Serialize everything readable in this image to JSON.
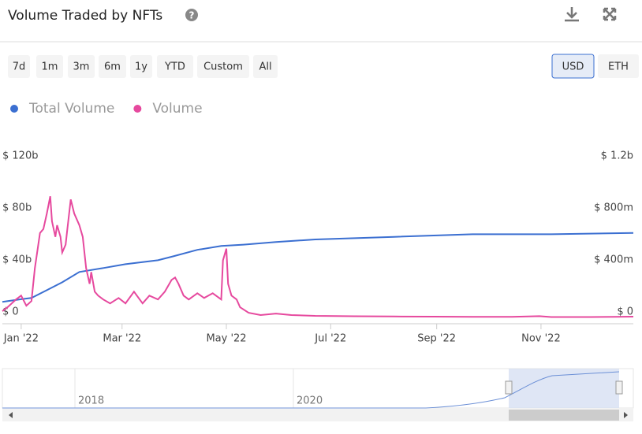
{
  "chart_data": {
    "type": "line",
    "title": "Volume Traded by NFTs",
    "range_buttons": [
      "7d",
      "1m",
      "3m",
      "6m",
      "1y",
      "YTD",
      "Custom",
      "All"
    ],
    "currency_buttons": [
      "USD",
      "ETH"
    ],
    "selected_currency": "USD",
    "xlim": [
      -11,
      358
    ],
    "xticks": [
      {
        "value": 0,
        "label": "Jan '22"
      },
      {
        "value": 59,
        "label": "Mar '22"
      },
      {
        "value": 120,
        "label": "May '22"
      },
      {
        "value": 181,
        "label": "Jul '22"
      },
      {
        "value": 243,
        "label": "Sep '22"
      },
      {
        "value": 304,
        "label": "Nov '22"
      }
    ],
    "ylim": [
      0,
      120
    ],
    "yticks": [
      {
        "value": 0,
        "label": "$ 0"
      },
      {
        "value": 40,
        "label": "$ 40b"
      },
      {
        "value": 80,
        "label": "$ 80b"
      },
      {
        "value": 120,
        "label": "$ 120b"
      }
    ],
    "y2lim": [
      0,
      1200
    ],
    "y2ticks": [
      {
        "value": 0,
        "label": "$ 0"
      },
      {
        "value": 400,
        "label": "$ 400m"
      },
      {
        "value": 800,
        "label": "$ 800m"
      },
      {
        "value": 1200,
        "label": "$ 1.2b"
      }
    ],
    "grid": false,
    "legend": "top-left",
    "navigator_labels": [
      "2018",
      "2020"
    ],
    "series": [
      {
        "name": "Total Volume",
        "color": "#3b6fd1",
        "axis": "y",
        "x": [
          -11,
          0,
          6,
          15,
          24,
          34,
          48,
          61,
          80,
          89,
          103,
          117,
          130,
          149,
          172,
          195,
          218,
          264,
          310,
          358
        ],
        "values": [
          12,
          14,
          15,
          21,
          27,
          35,
          38,
          41,
          44,
          47,
          52,
          55,
          56,
          58,
          60,
          61,
          62,
          64,
          64,
          65
        ]
      },
      {
        "name": "Volume",
        "color": "#e6499e",
        "axis": "y2",
        "x": [
          -11,
          -8,
          -3,
          0,
          3,
          6,
          8,
          11,
          13,
          15,
          17,
          18,
          20,
          21,
          23,
          24,
          26,
          27,
          29,
          31,
          34,
          36,
          38,
          40,
          41,
          43,
          45,
          48,
          52,
          57,
          61,
          66,
          71,
          75,
          80,
          84,
          88,
          90,
          92,
          95,
          98,
          103,
          107,
          112,
          117,
          118,
          120,
          121,
          123,
          126,
          128,
          133,
          140,
          149,
          158,
          172,
          195,
          218,
          241,
          264,
          287,
          303,
          310,
          333,
          347,
          358
        ],
        "values": [
          48,
          78,
          138,
          168,
          90,
          126,
          379,
          650,
          680,
          800,
          932,
          740,
          620,
          710,
          620,
          500,
          560,
          680,
          908,
          800,
          710,
          620,
          379,
          259,
          349,
          198,
          168,
          138,
          108,
          150,
          108,
          198,
          108,
          168,
          138,
          198,
          289,
          307,
          259,
          168,
          138,
          186,
          150,
          186,
          138,
          439,
          529,
          259,
          168,
          138,
          78,
          36,
          18,
          30,
          18,
          12,
          9,
          7,
          6,
          5,
          4,
          10,
          3,
          3,
          5,
          6
        ]
      }
    ]
  }
}
